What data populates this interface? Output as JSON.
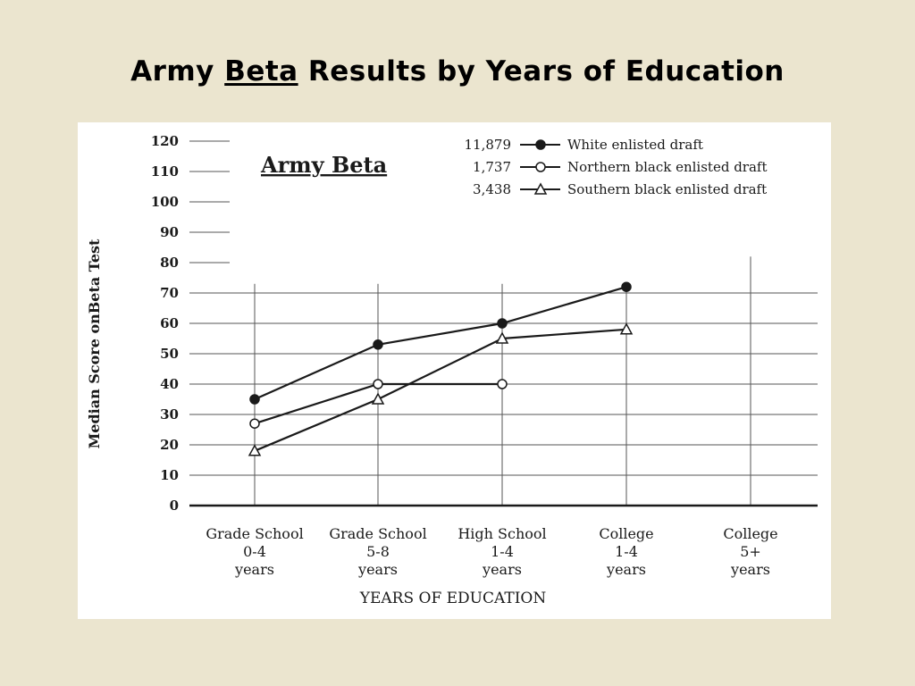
{
  "slide": {
    "title_part1": "Army ",
    "title_part2": "Beta",
    "title_part3": " Results by Years of Education"
  },
  "colors": {
    "background": "#ebe5cf",
    "panel": "#ffffff",
    "ink": "#1a1a1a",
    "grid": "#555555"
  },
  "chart_data": {
    "type": "line",
    "title": "Army Beta",
    "xlabel": "YEARS OF EDUCATION",
    "ylabel": "Median Score onBeta Test",
    "ylim": [
      0,
      120
    ],
    "yticks": [
      0,
      10,
      20,
      30,
      40,
      50,
      60,
      70,
      80,
      90,
      100,
      110,
      120
    ],
    "categories": [
      [
        "Grade School",
        "0-4",
        "years"
      ],
      [
        "Grade School",
        "5-8",
        "years"
      ],
      [
        "High School",
        "1-4",
        "years"
      ],
      [
        "College",
        "1-4",
        "years"
      ],
      [
        "College",
        "5+",
        "years"
      ]
    ],
    "grid": true,
    "legend_position": "top-right",
    "series": [
      {
        "name": "White enlisted draft",
        "count": "11,879",
        "marker": "filled-circle",
        "values": [
          35,
          53,
          60,
          72,
          null
        ]
      },
      {
        "name": "Northern black enlisted draft",
        "count": "1,737",
        "marker": "open-circle",
        "values": [
          27,
          40,
          40,
          null,
          null
        ]
      },
      {
        "name": "Southern black enlisted draft",
        "count": "3,438",
        "marker": "open-triangle",
        "values": [
          18,
          35,
          55,
          58,
          null
        ]
      }
    ]
  }
}
